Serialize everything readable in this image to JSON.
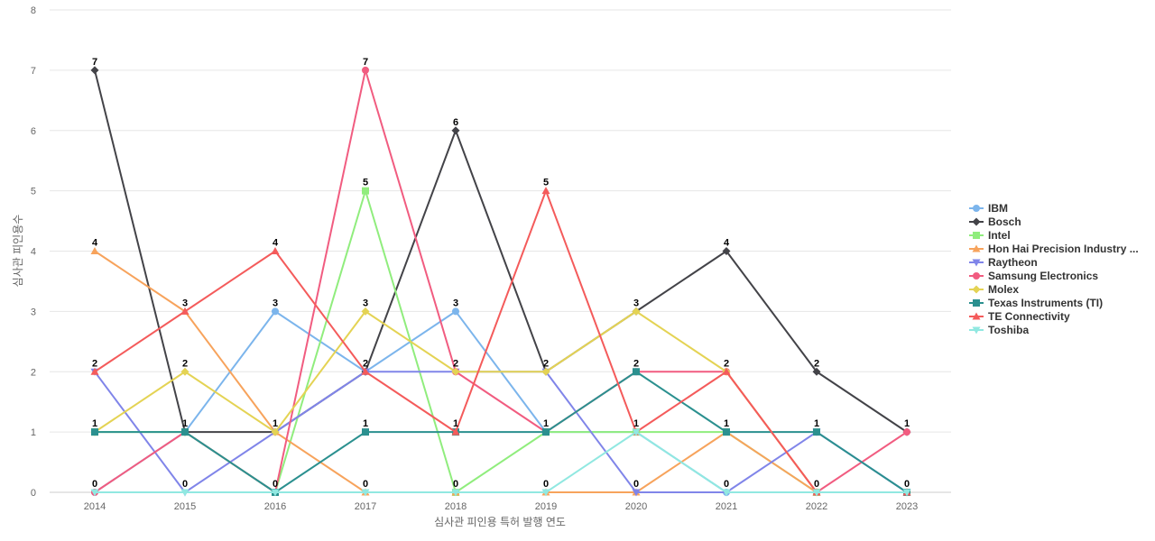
{
  "chart_data": {
    "type": "line",
    "xlabel": "심사관 피인용 특허 발행 연도",
    "ylabel": "심사관 피인용수",
    "x": [
      "2014",
      "2015",
      "2016",
      "2017",
      "2018",
      "2019",
      "2020",
      "2021",
      "2022",
      "2023"
    ],
    "ylim": [
      0,
      8
    ],
    "yticks": [
      0,
      1,
      2,
      3,
      4,
      5,
      6,
      7,
      8
    ],
    "grid": true,
    "legend_position": "right",
    "series": [
      {
        "name": "IBM",
        "color": "#7cb5ec",
        "marker": "circle",
        "values": [
          0,
          1,
          3,
          2,
          3,
          1,
          1,
          0,
          0,
          0
        ]
      },
      {
        "name": "Bosch",
        "color": "#434348",
        "marker": "diamond",
        "values": [
          7,
          1,
          1,
          2,
          6,
          2,
          3,
          4,
          2,
          1
        ]
      },
      {
        "name": "Intel",
        "color": "#90ed7d",
        "marker": "square",
        "values": [
          1,
          1,
          0,
          5,
          0,
          1,
          1,
          1,
          0,
          0
        ]
      },
      {
        "name": "Hon Hai Precision Industry ...",
        "color": "#f7a35c",
        "marker": "triangle",
        "values": [
          4,
          3,
          1,
          0,
          0,
          0,
          0,
          1,
          0,
          0
        ]
      },
      {
        "name": "Raytheon",
        "color": "#8085e9",
        "marker": "triangle-down",
        "values": [
          2,
          0,
          1,
          2,
          2,
          2,
          0,
          0,
          1,
          0
        ]
      },
      {
        "name": "Samsung Electronics",
        "color": "#f15c80",
        "marker": "circle",
        "values": [
          0,
          1,
          0,
          7,
          2,
          1,
          2,
          2,
          0,
          1
        ]
      },
      {
        "name": "Molex",
        "color": "#e4d354",
        "marker": "diamond",
        "values": [
          1,
          2,
          1,
          3,
          2,
          2,
          3,
          2,
          0,
          0
        ]
      },
      {
        "name": "Texas Instruments (TI)",
        "color": "#2b908f",
        "marker": "square",
        "values": [
          1,
          1,
          0,
          1,
          1,
          1,
          2,
          1,
          1,
          0
        ]
      },
      {
        "name": "TE Connectivity",
        "color": "#f45b5b",
        "marker": "triangle",
        "values": [
          2,
          3,
          4,
          2,
          1,
          5,
          1,
          2,
          0,
          0
        ]
      },
      {
        "name": "Toshiba",
        "color": "#91e8e1",
        "marker": "triangle-down",
        "values": [
          0,
          0,
          0,
          0,
          0,
          0,
          1,
          0,
          0,
          0
        ]
      }
    ],
    "data_labels": [
      {
        "x": "2014",
        "values": [
          7,
          4,
          2,
          1,
          0
        ]
      },
      {
        "x": "2015",
        "values": [
          3,
          2,
          1,
          0
        ]
      },
      {
        "x": "2016",
        "values": [
          4,
          3,
          1,
          0
        ]
      },
      {
        "x": "2017",
        "values": [
          7,
          5,
          3,
          2,
          1,
          0
        ]
      },
      {
        "x": "2018",
        "values": [
          6,
          3,
          2,
          1,
          0
        ]
      },
      {
        "x": "2019",
        "values": [
          5,
          2,
          1,
          0
        ]
      },
      {
        "x": "2020",
        "values": [
          3,
          2,
          1,
          0
        ]
      },
      {
        "x": "2021",
        "values": [
          4,
          2,
          1,
          0
        ]
      },
      {
        "x": "2022",
        "values": [
          2,
          1,
          0
        ]
      },
      {
        "x": "2023",
        "values": [
          1,
          0
        ]
      }
    ]
  }
}
